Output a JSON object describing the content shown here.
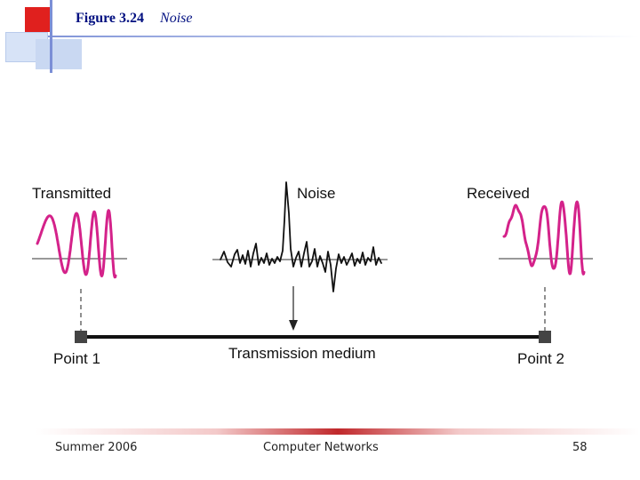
{
  "slide": {
    "figure_number": "Figure 3.24",
    "figure_title": "Noise"
  },
  "diagram": {
    "labels": {
      "transmitted": "Transmitted",
      "noise": "Noise",
      "received": "Received",
      "point1": "Point 1",
      "medium": "Transmission medium",
      "point2": "Point 2"
    },
    "colors": {
      "signal": "#d4228a",
      "noise": "#111111",
      "medium": "#111111",
      "point": "#444444"
    }
  },
  "footer": {
    "left": "Summer 2006",
    "center": "Computer Networks",
    "right": "58"
  }
}
